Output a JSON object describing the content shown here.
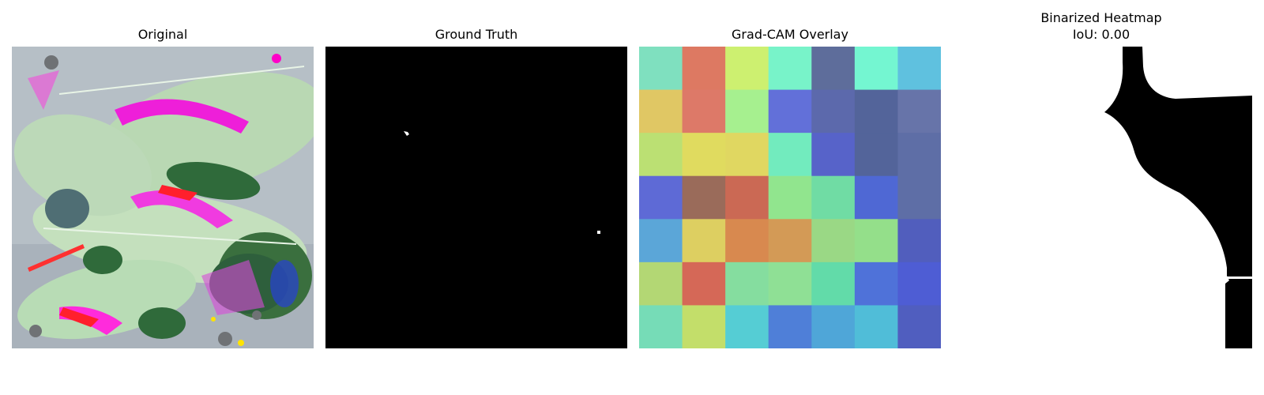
{
  "panels": [
    {
      "id": "original",
      "title": "Original"
    },
    {
      "id": "ground_truth",
      "title": "Ground Truth"
    },
    {
      "id": "gradcam",
      "title": "Grad-CAM Overlay"
    },
    {
      "id": "binarized",
      "title_line1": "Binarized Heatmap",
      "title_line2": "IoU: 0.00"
    }
  ],
  "gradcam_grid": [
    [
      "#7fe0bf",
      "#dd7962",
      "#cdf070",
      "#78f3c9",
      "#5e6d9b",
      "#74f6d1",
      "#5fc1df"
    ],
    [
      "#e0c764",
      "#dd7968",
      "#a6f08f",
      "#6270d9",
      "#5c69ac",
      "#53649a",
      "#6774a9"
    ],
    [
      "#bbe073",
      "#e0db5f",
      "#e0d761",
      "#72ebbe",
      "#5763c9",
      "#53649a",
      "#5e6ea6"
    ],
    [
      "#5e6ad6",
      "#9a6b5a",
      "#cb6954",
      "#91e58e",
      "#70dca4",
      "#4f68d4",
      "#5e6ea6"
    ],
    [
      "#5ba6d8",
      "#ddcf61",
      "#d8894f",
      "#d39a56",
      "#9ad885",
      "#94df8a",
      "#515ebd"
    ],
    [
      "#b3d774",
      "#d56857",
      "#85dd9f",
      "#8fe095",
      "#62dba9",
      "#4f72d9",
      "#4e5dd4"
    ],
    [
      "#76dcb7",
      "#c3de6a",
      "#55cdd4",
      "#4f7fd8",
      "#4fa6d8",
      "#50bdd8",
      "#505ebf"
    ]
  ],
  "colors": {
    "background": "#ffffff",
    "mask_foreground": "#ffffff",
    "mask_background": "#000000"
  }
}
